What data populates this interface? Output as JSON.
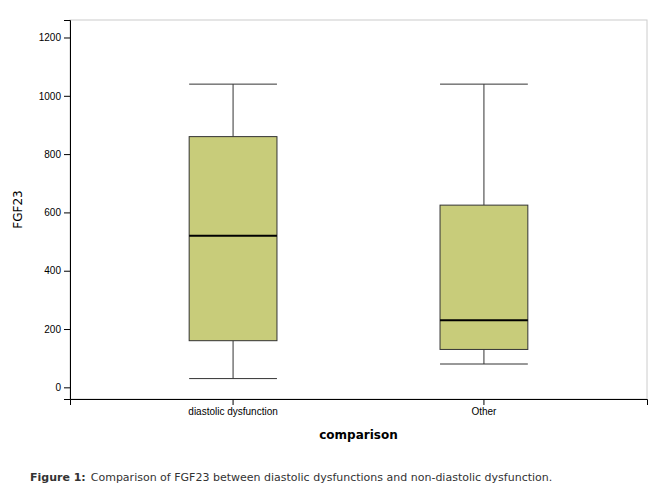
{
  "chart_data": {
    "type": "box",
    "categories": [
      "diastolic dysfunction",
      "Other"
    ],
    "boxes": [
      {
        "whisker_low": 30,
        "q1": 160,
        "median": 520,
        "q3": 860,
        "whisker_high": 1040
      },
      {
        "whisker_low": 80,
        "q1": 130,
        "median": 230,
        "q3": 625,
        "whisker_high": 1040
      }
    ],
    "color": "#c8cc7a",
    "ylim": [
      -40,
      1260
    ],
    "yticks": [
      0,
      200,
      400,
      600,
      800,
      1000,
      1200
    ],
    "ylabel": "FGF23",
    "xlabel": "comparison",
    "caption_label": "Figure 1:",
    "caption": "Comparison of FGF23 between diastolic dysfunctions and non-diastolic dysfunction.",
    "grid": false
  }
}
